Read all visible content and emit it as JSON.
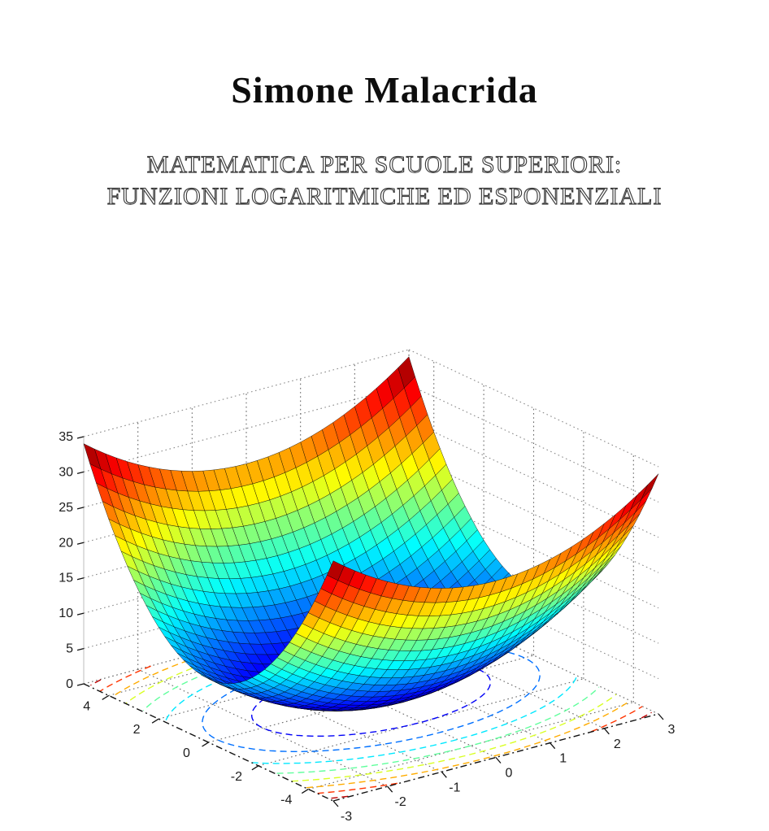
{
  "cover": {
    "author": "Simone Malacrida",
    "title_line1": "MATEMATICA PER SCUOLE SUPERIORI:",
    "title_line2": "FUNZIONI LOGARITMICHE ED ESPONENZIALI"
  },
  "chart_data": {
    "type": "surface3d_with_floor_contour",
    "function": "z = x^2 + y^2",
    "x_range": [
      -3,
      3
    ],
    "y_range": [
      -5,
      5
    ],
    "z_range": [
      0,
      35
    ],
    "x_ticks": [
      -3,
      -2,
      -1,
      0,
      1,
      2,
      3
    ],
    "y_ticks": [
      -4,
      -2,
      0,
      2,
      4
    ],
    "z_ticks": [
      0,
      5,
      10,
      15,
      20,
      25,
      30,
      35
    ],
    "colormap": "jet",
    "color_axis": [
      0,
      34
    ],
    "corner_peak_z": 34,
    "contour_levels": [
      4,
      8,
      12,
      16,
      20,
      24,
      28,
      32
    ],
    "mesh_divisions": {
      "x": 30,
      "y": 40
    },
    "grid": true,
    "legend": false,
    "title": "",
    "xlabel": "",
    "ylabel": "",
    "zlabel": "",
    "colors": {
      "mesh_edge": "#000000",
      "grid_dotted": "#666666",
      "wall_grid": "#8a8a8a",
      "axis_edge": "#111111",
      "z_axis_line": "#c9c9c9"
    }
  }
}
